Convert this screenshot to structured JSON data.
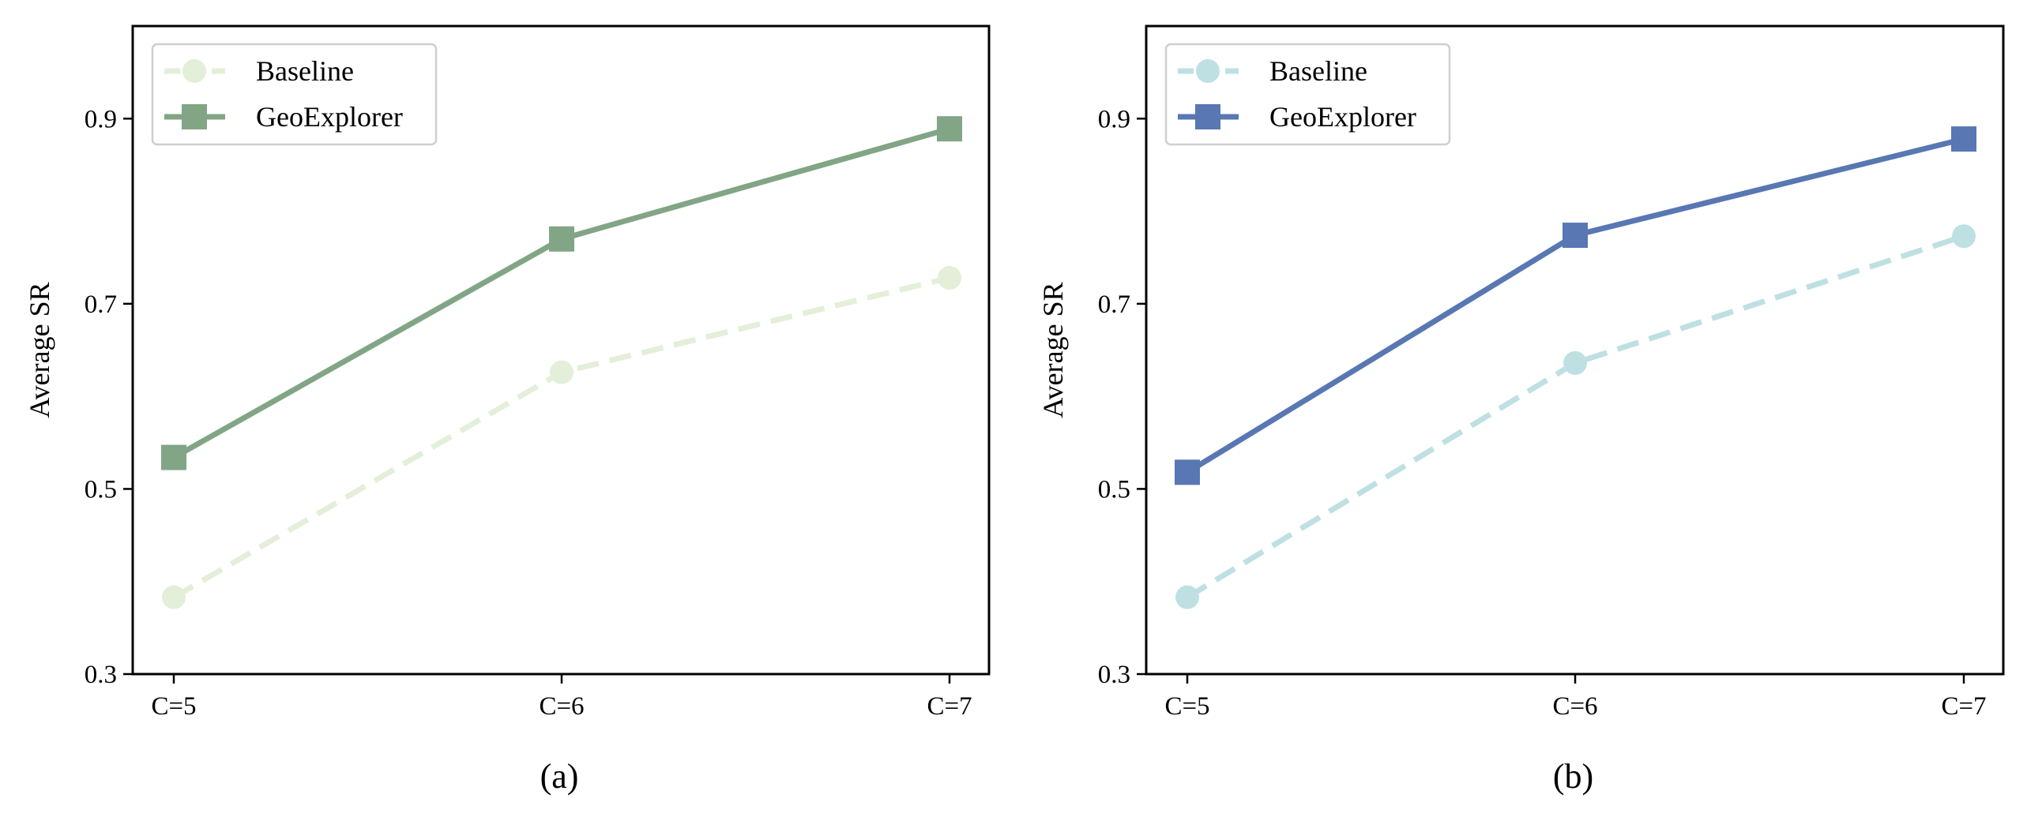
{
  "chart_data": [
    {
      "type": "line",
      "caption": "(a)",
      "ylabel": "Average SR",
      "xlabel": "",
      "categories": [
        "C=5",
        "C=6",
        "C=7"
      ],
      "ylim": [
        0.3,
        1.0
      ],
      "yticks": [
        0.3,
        0.5,
        0.7,
        0.9
      ],
      "ytick_labels": [
        "0.3",
        "0.5",
        "0.7",
        "0.9"
      ],
      "grid": false,
      "legend_position": "top-left",
      "series": [
        {
          "name": "Baseline",
          "values": [
            0.383,
            0.626,
            0.728
          ],
          "color": "#e3efd9",
          "style": "dashed",
          "marker": "circle"
        },
        {
          "name": "GeoExplorer",
          "values": [
            0.534,
            0.77,
            0.889
          ],
          "color": "#82a585",
          "style": "solid",
          "marker": "square"
        }
      ]
    },
    {
      "type": "line",
      "caption": "(b)",
      "ylabel": "Average SR",
      "xlabel": "",
      "categories": [
        "C=5",
        "C=6",
        "C=7"
      ],
      "ylim": [
        0.3,
        1.0
      ],
      "yticks": [
        0.3,
        0.5,
        0.7,
        0.9
      ],
      "ytick_labels": [
        "0.3",
        "0.5",
        "0.7",
        "0.9"
      ],
      "grid": false,
      "legend_position": "top-left",
      "series": [
        {
          "name": "Baseline",
          "values": [
            0.383,
            0.636,
            0.773
          ],
          "color": "#bfe0e2",
          "style": "dashed",
          "marker": "circle"
        },
        {
          "name": "GeoExplorer",
          "values": [
            0.518,
            0.774,
            0.878
          ],
          "color": "#5877b3",
          "style": "solid",
          "marker": "square"
        }
      ]
    }
  ]
}
